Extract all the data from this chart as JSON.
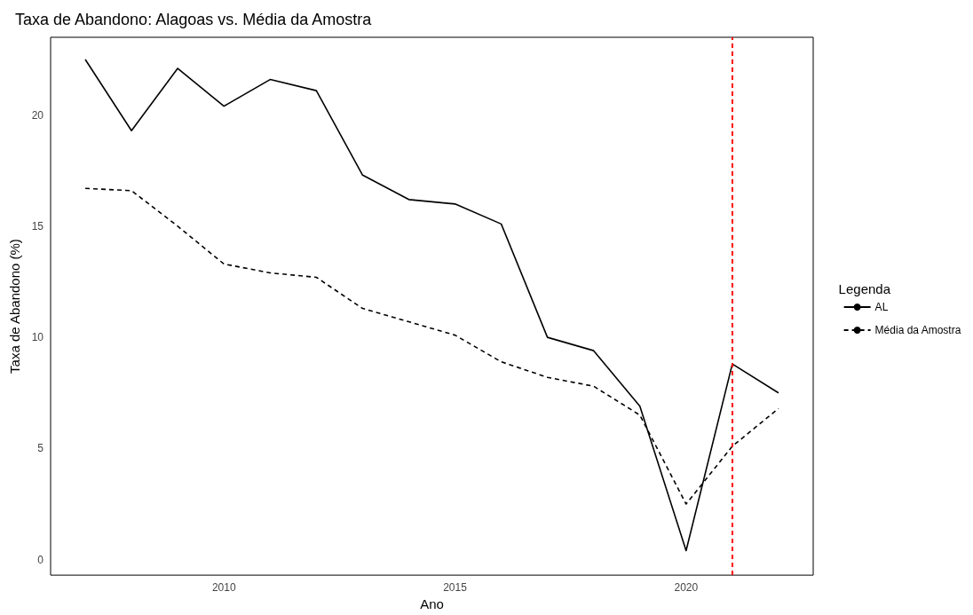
{
  "chart_data": {
    "type": "line",
    "title": "Taxa de Abandono: Alagoas vs. Média da Amostra",
    "xlabel": "Ano",
    "ylabel": "Taxa de Abandono (%)",
    "legend_title": "Legenda",
    "x": [
      2007,
      2008,
      2009,
      2010,
      2011,
      2012,
      2013,
      2014,
      2015,
      2016,
      2017,
      2018,
      2019,
      2020,
      2021,
      2022
    ],
    "series": [
      {
        "name": "AL",
        "color": "#000000",
        "line_style": "solid",
        "values": [
          22.5,
          19.3,
          22.1,
          20.4,
          21.6,
          21.1,
          17.3,
          16.2,
          16.0,
          15.1,
          10.0,
          9.4,
          6.9,
          0.4,
          8.8,
          7.5
        ]
      },
      {
        "name": "Média da Amostra",
        "color": "#000000",
        "line_style": "dashed",
        "values": [
          16.7,
          16.6,
          15.0,
          13.3,
          12.9,
          12.7,
          11.3,
          10.7,
          10.1,
          8.9,
          8.2,
          7.8,
          6.5,
          2.5,
          5.1,
          6.8
        ]
      }
    ],
    "xlim": [
      2006.25,
      2022.75
    ],
    "xticks": [
      2010,
      2015,
      2020
    ],
    "ylim": [
      -0.7,
      23.5
    ],
    "yticks": [
      0,
      5,
      10,
      15,
      20
    ],
    "ref_lines": [
      {
        "axis": "x",
        "value": 2021,
        "color": "#ff0000",
        "line_style": "dashed"
      }
    ],
    "grid": false,
    "legend": "right",
    "marker": "none"
  }
}
